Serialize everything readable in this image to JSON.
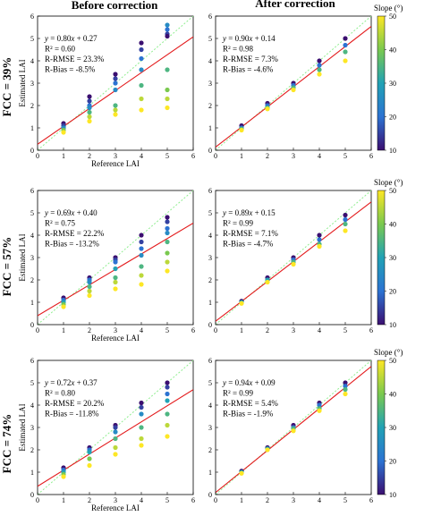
{
  "colors": {
    "regression_line": "#e31a1c",
    "one_to_one_line": "#90ee90",
    "colormap_low": "#3b0f70",
    "colormap_mid": "#21a2b5",
    "colormap_high": "#fde725"
  },
  "figure": {
    "column_titles": [
      "Before correction",
      "After correction"
    ],
    "row_titles": [
      "FCC = 39%",
      "FCC = 57%",
      "FCC = 74%"
    ],
    "colorbar_label": "Slope (°)",
    "colorbar_ticks": [
      "10",
      "20",
      "30",
      "40",
      "50"
    ]
  },
  "chart_data": [
    {
      "type": "scatter",
      "title": "",
      "xlabel": "Reference LAI",
      "ylabel": "Estimated LAI",
      "xlim": [
        0,
        6
      ],
      "ylim": [
        0,
        6
      ],
      "x_ticks": [
        "0",
        "1",
        "2",
        "3",
        "4",
        "5",
        "6"
      ],
      "y_ticks": [
        "0",
        "1",
        "2",
        "3",
        "4",
        "5",
        "6"
      ],
      "annotations": [
        "y = 0.80x + 0.27",
        "R² = 0.60",
        "R-RMSE = 23.3%",
        "R-Bias = -8.5%"
      ],
      "regression": {
        "slope": 0.8,
        "intercept": 0.27
      },
      "color_by": "Slope (°)",
      "points": [
        [
          1,
          1.2
        ],
        [
          1,
          1.1
        ],
        [
          1,
          1.0
        ],
        [
          1,
          1.0
        ],
        [
          1,
          0.9
        ],
        [
          1,
          0.8
        ],
        [
          2,
          2.4
        ],
        [
          2,
          2.2
        ],
        [
          2,
          2.0
        ],
        [
          2,
          1.9
        ],
        [
          2,
          1.7
        ],
        [
          2,
          1.5
        ],
        [
          2,
          1.3
        ],
        [
          3,
          3.4
        ],
        [
          3,
          3.2
        ],
        [
          3,
          3.0
        ],
        [
          3,
          2.7
        ],
        [
          3,
          2.0
        ],
        [
          3,
          1.8
        ],
        [
          3,
          1.6
        ],
        [
          4,
          4.8
        ],
        [
          4,
          4.5
        ],
        [
          4,
          4.1
        ],
        [
          4,
          3.6
        ],
        [
          4,
          2.9
        ],
        [
          4,
          2.3
        ],
        [
          4,
          1.8
        ],
        [
          5,
          5.6
        ],
        [
          5,
          5.4
        ],
        [
          5,
          5.2
        ],
        [
          5,
          5.1
        ],
        [
          5,
          3.6
        ],
        [
          5,
          2.7
        ],
        [
          5,
          2.3
        ],
        [
          5,
          1.9
        ]
      ],
      "slopes": [
        10,
        15,
        20,
        25,
        40,
        50,
        10,
        15,
        20,
        25,
        35,
        45,
        50,
        10,
        15,
        20,
        25,
        35,
        45,
        50,
        10,
        15,
        20,
        25,
        35,
        45,
        50,
        25,
        20,
        15,
        10,
        35,
        40,
        45,
        50
      ]
    },
    {
      "type": "scatter",
      "title": "",
      "xlabel": "",
      "ylabel": "",
      "xlim": [
        0,
        6
      ],
      "ylim": [
        0,
        6
      ],
      "x_ticks": [
        "0",
        "1",
        "2",
        "3",
        "4",
        "5",
        "6"
      ],
      "y_ticks": [
        "0",
        "1",
        "2",
        "3",
        "4",
        "5",
        "6"
      ],
      "annotations": [
        "y = 0.90x + 0.14",
        "R² = 0.98",
        "R-RMSE = 7.3%",
        "R-Bias = -4.6%"
      ],
      "regression": {
        "slope": 0.9,
        "intercept": 0.14
      },
      "color_by": "Slope (°)",
      "points": [
        [
          1,
          1.1
        ],
        [
          1,
          1.0
        ],
        [
          1,
          0.95
        ],
        [
          1,
          0.9
        ],
        [
          2,
          2.1
        ],
        [
          2,
          2.0
        ],
        [
          2,
          1.9
        ],
        [
          2,
          1.85
        ],
        [
          3,
          3.0
        ],
        [
          3,
          2.9
        ],
        [
          3,
          2.8
        ],
        [
          3,
          2.7
        ],
        [
          4,
          4.0
        ],
        [
          4,
          3.8
        ],
        [
          4,
          3.6
        ],
        [
          4,
          3.4
        ],
        [
          5,
          5.0
        ],
        [
          5,
          4.7
        ],
        [
          5,
          4.4
        ],
        [
          5,
          4.0
        ]
      ],
      "slopes": [
        10,
        20,
        35,
        50,
        10,
        20,
        35,
        50,
        10,
        20,
        35,
        50,
        10,
        20,
        35,
        50,
        10,
        20,
        35,
        50
      ]
    },
    {
      "type": "scatter",
      "title": "",
      "xlabel": "Reference LAI",
      "ylabel": "Estimated LAI",
      "xlim": [
        0,
        6
      ],
      "ylim": [
        0,
        6
      ],
      "x_ticks": [
        "0",
        "1",
        "2",
        "3",
        "4",
        "5",
        "6"
      ],
      "y_ticks": [
        "0",
        "1",
        "2",
        "3",
        "4",
        "5",
        "6"
      ],
      "annotations": [
        "y = 0.69x + 0.40",
        "R² = 0.75",
        "R-RMSE = 22.2%",
        "R-Bias = -13.2%"
      ],
      "regression": {
        "slope": 0.69,
        "intercept": 0.4
      },
      "color_by": "Slope (°)",
      "points": [
        [
          1,
          1.2
        ],
        [
          1,
          1.1
        ],
        [
          1,
          1.0
        ],
        [
          1,
          0.9
        ],
        [
          1,
          0.8
        ],
        [
          2,
          2.1
        ],
        [
          2,
          2.0
        ],
        [
          2,
          1.9
        ],
        [
          2,
          1.7
        ],
        [
          2,
          1.5
        ],
        [
          2,
          1.3
        ],
        [
          3,
          3.0
        ],
        [
          3,
          2.9
        ],
        [
          3,
          2.8
        ],
        [
          3,
          2.5
        ],
        [
          3,
          2.1
        ],
        [
          3,
          1.9
        ],
        [
          3,
          1.6
        ],
        [
          4,
          4.0
        ],
        [
          4,
          3.7
        ],
        [
          4,
          3.4
        ],
        [
          4,
          3.1
        ],
        [
          4,
          2.6
        ],
        [
          4,
          2.2
        ],
        [
          4,
          1.8
        ],
        [
          5,
          4.8
        ],
        [
          5,
          4.6
        ],
        [
          5,
          4.3
        ],
        [
          5,
          4.1
        ],
        [
          5,
          3.7
        ],
        [
          5,
          3.2
        ],
        [
          5,
          2.8
        ],
        [
          5,
          2.4
        ]
      ],
      "slopes": [
        10,
        20,
        30,
        40,
        50,
        10,
        20,
        25,
        35,
        45,
        50,
        10,
        15,
        20,
        30,
        35,
        45,
        50,
        10,
        15,
        20,
        25,
        35,
        45,
        50,
        10,
        15,
        20,
        25,
        35,
        40,
        45,
        50
      ]
    },
    {
      "type": "scatter",
      "title": "",
      "xlabel": "",
      "ylabel": "",
      "xlim": [
        0,
        6
      ],
      "ylim": [
        0,
        6
      ],
      "x_ticks": [
        "0",
        "1",
        "2",
        "3",
        "4",
        "5",
        "6"
      ],
      "y_ticks": [
        "0",
        "1",
        "2",
        "3",
        "4",
        "5",
        "6"
      ],
      "annotations": [
        "y = 0.89x + 0.15",
        "R² = 0.99",
        "R-RMSE = 7.1%",
        "R-Bias = -4.7%"
      ],
      "regression": {
        "slope": 0.89,
        "intercept": 0.15
      },
      "color_by": "Slope (°)",
      "points": [
        [
          1,
          1.05
        ],
        [
          1,
          1.0
        ],
        [
          1,
          0.95
        ],
        [
          2,
          2.1
        ],
        [
          2,
          2.0
        ],
        [
          2,
          1.9
        ],
        [
          3,
          3.0
        ],
        [
          3,
          2.9
        ],
        [
          3,
          2.8
        ],
        [
          3,
          2.7
        ],
        [
          4,
          4.0
        ],
        [
          4,
          3.8
        ],
        [
          4,
          3.6
        ],
        [
          4,
          3.5
        ],
        [
          5,
          4.9
        ],
        [
          5,
          4.7
        ],
        [
          5,
          4.5
        ],
        [
          5,
          4.2
        ]
      ],
      "slopes": [
        10,
        30,
        50,
        10,
        30,
        50,
        10,
        20,
        35,
        50,
        10,
        20,
        35,
        50,
        10,
        20,
        35,
        50
      ]
    },
    {
      "type": "scatter",
      "title": "",
      "xlabel": "Reference LAI",
      "ylabel": "Estimated LAI",
      "xlim": [
        0,
        6
      ],
      "ylim": [
        0,
        6
      ],
      "x_ticks": [
        "0",
        "1",
        "2",
        "3",
        "4",
        "5",
        "6"
      ],
      "y_ticks": [
        "0",
        "1",
        "2",
        "3",
        "4",
        "5",
        "6"
      ],
      "annotations": [
        "y = 0.72x + 0.37",
        "R² = 0.80",
        "R-RMSE = 20.2%",
        "R-Bias = -11.8%"
      ],
      "regression": {
        "slope": 0.72,
        "intercept": 0.37
      },
      "color_by": "Slope (°)",
      "points": [
        [
          1,
          1.2
        ],
        [
          1,
          1.1
        ],
        [
          1,
          1.0
        ],
        [
          1,
          0.9
        ],
        [
          1,
          0.8
        ],
        [
          2,
          2.1
        ],
        [
          2,
          2.0
        ],
        [
          2,
          1.9
        ],
        [
          2,
          1.6
        ],
        [
          2,
          1.3
        ],
        [
          3,
          3.1
        ],
        [
          3,
          3.0
        ],
        [
          3,
          2.8
        ],
        [
          3,
          2.5
        ],
        [
          3,
          2.1
        ],
        [
          3,
          1.8
        ],
        [
          4,
          4.1
        ],
        [
          4,
          3.9
        ],
        [
          4,
          3.6
        ],
        [
          4,
          3.0
        ],
        [
          4,
          2.5
        ],
        [
          4,
          2.2
        ],
        [
          5,
          5.0
        ],
        [
          5,
          4.8
        ],
        [
          5,
          4.5
        ],
        [
          5,
          4.2
        ],
        [
          5,
          3.6
        ],
        [
          5,
          3.1
        ],
        [
          5,
          2.6
        ]
      ],
      "slopes": [
        10,
        20,
        30,
        40,
        50,
        10,
        20,
        30,
        40,
        50,
        10,
        15,
        25,
        35,
        45,
        50,
        10,
        15,
        25,
        35,
        45,
        50,
        10,
        15,
        20,
        30,
        35,
        45,
        50
      ]
    },
    {
      "type": "scatter",
      "title": "",
      "xlabel": "",
      "ylabel": "",
      "xlim": [
        0,
        6
      ],
      "ylim": [
        0,
        6
      ],
      "x_ticks": [
        "0",
        "1",
        "2",
        "3",
        "4",
        "5",
        "6"
      ],
      "y_ticks": [
        "0",
        "1",
        "2",
        "3",
        "4",
        "5",
        "6"
      ],
      "annotations": [
        "y = 0.94x + 0.09",
        "R² = 0.99",
        "R-RMSE = 5.4%",
        "R-Bias = -1.9%"
      ],
      "regression": {
        "slope": 0.94,
        "intercept": 0.09
      },
      "color_by": "Slope (°)",
      "points": [
        [
          1,
          1.05
        ],
        [
          1,
          1.0
        ],
        [
          1,
          0.95
        ],
        [
          2,
          2.1
        ],
        [
          2,
          2.05
        ],
        [
          2,
          2.0
        ],
        [
          3,
          3.1
        ],
        [
          3,
          3.0
        ],
        [
          3,
          2.95
        ],
        [
          3,
          2.85
        ],
        [
          4,
          4.1
        ],
        [
          4,
          4.0
        ],
        [
          4,
          3.85
        ],
        [
          4,
          3.75
        ],
        [
          5,
          5.0
        ],
        [
          5,
          4.85
        ],
        [
          5,
          4.7
        ],
        [
          5,
          4.5
        ]
      ],
      "slopes": [
        10,
        30,
        50,
        10,
        30,
        50,
        10,
        20,
        35,
        50,
        10,
        20,
        35,
        50,
        10,
        20,
        35,
        50
      ]
    }
  ]
}
